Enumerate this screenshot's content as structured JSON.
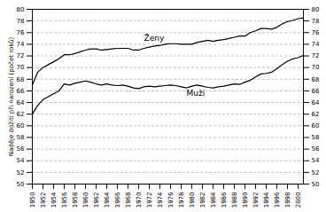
{
  "chart_data": {
    "type": "line",
    "ylabel": "Naděje dožití při narození (počet roků)",
    "x": [
      1950,
      1951,
      1952,
      1953,
      1954,
      1955,
      1956,
      1957,
      1958,
      1959,
      1960,
      1961,
      1962,
      1963,
      1964,
      1965,
      1966,
      1967,
      1968,
      1969,
      1970,
      1971,
      1972,
      1973,
      1974,
      1975,
      1976,
      1977,
      1978,
      1979,
      1980,
      1981,
      1982,
      1983,
      1984,
      1985,
      1986,
      1987,
      1988,
      1989,
      1990,
      1991,
      1992,
      1993,
      1994,
      1995,
      1996,
      1997,
      1998,
      1999,
      2000,
      2001
    ],
    "series": [
      {
        "name": "Ženy",
        "color": "#000000",
        "values": [
          67.0,
          69.2,
          70.0,
          70.5,
          71.0,
          71.5,
          72.2,
          72.2,
          72.4,
          72.7,
          73.0,
          73.2,
          73.2,
          73.0,
          73.1,
          73.2,
          73.3,
          73.3,
          73.3,
          73.0,
          73.0,
          73.3,
          73.5,
          73.7,
          73.8,
          74.0,
          74.1,
          74.1,
          74.0,
          74.0,
          74.0,
          74.3,
          74.5,
          74.7,
          74.5,
          74.7,
          74.8,
          75.0,
          75.2,
          75.4,
          75.4,
          76.0,
          76.3,
          76.7,
          76.7,
          76.6,
          76.9,
          77.5,
          77.9,
          78.1,
          78.4,
          78.5
        ]
      },
      {
        "name": "Muži",
        "color": "#000000",
        "values": [
          62.0,
          63.5,
          64.5,
          65.0,
          65.5,
          66.0,
          67.2,
          67.0,
          67.3,
          67.5,
          67.7,
          67.5,
          67.2,
          67.0,
          67.2,
          67.0,
          66.9,
          67.0,
          66.8,
          66.5,
          66.4,
          66.7,
          66.8,
          66.7,
          66.8,
          66.9,
          67.0,
          66.9,
          66.7,
          66.5,
          66.8,
          67.0,
          66.8,
          66.6,
          66.5,
          66.7,
          66.8,
          67.0,
          67.2,
          67.1,
          67.5,
          67.8,
          68.4,
          68.9,
          69.0,
          69.2,
          69.8,
          70.5,
          71.1,
          71.5,
          71.7,
          72.1
        ]
      }
    ],
    "annotations": [
      {
        "text": "Ženy",
        "x": 1971,
        "y": 74.3
      },
      {
        "text": "Muži",
        "x": 1979,
        "y": 66.5
      }
    ],
    "xlim": [
      1950,
      2001
    ],
    "xticks": [
      1950,
      1952,
      1954,
      1956,
      1958,
      1960,
      1962,
      1964,
      1966,
      1968,
      1970,
      1972,
      1974,
      1976,
      1978,
      1980,
      1982,
      1984,
      1986,
      1988,
      1990,
      1992,
      1994,
      1996,
      1998,
      2000
    ],
    "ylim": [
      50,
      80
    ],
    "yticks": [
      50,
      52,
      54,
      56,
      58,
      60,
      62,
      64,
      66,
      68,
      70,
      72,
      74,
      76,
      78,
      80
    ],
    "y2lim": [
      50,
      80
    ],
    "y2ticks": [
      50,
      52,
      54,
      56,
      58,
      60,
      62,
      64,
      66,
      68,
      70,
      72,
      74,
      76,
      78,
      80
    ],
    "grid": true
  }
}
